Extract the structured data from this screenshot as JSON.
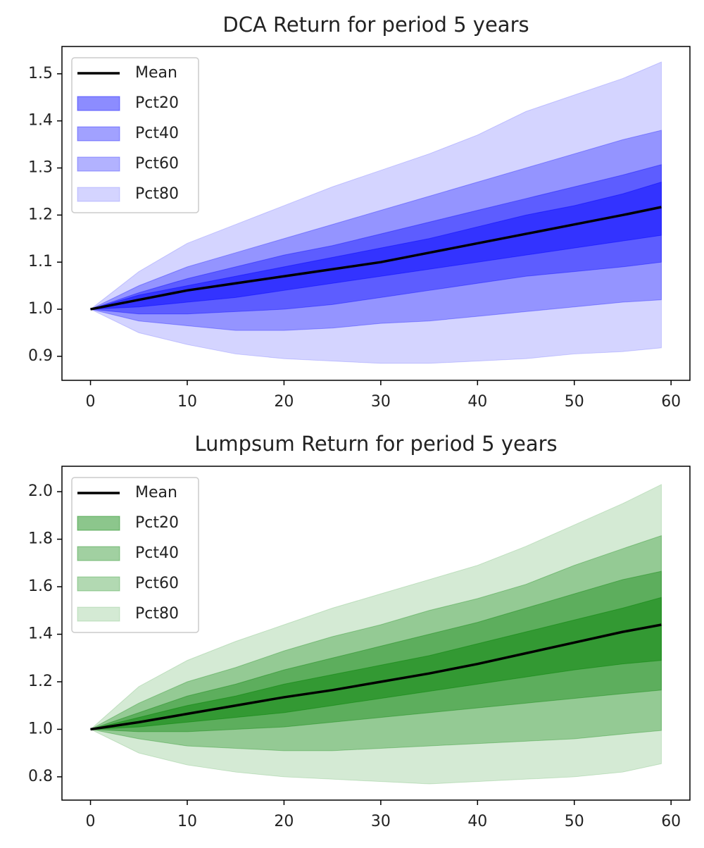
{
  "chart_data": [
    {
      "type": "fan",
      "title": "DCA Return for period 5 years",
      "x": [
        0,
        5,
        10,
        15,
        20,
        25,
        30,
        35,
        40,
        45,
        50,
        55,
        59
      ],
      "xlim": [
        -2.95,
        61.95
      ],
      "xticks": [
        0,
        10,
        20,
        30,
        40,
        50,
        60
      ],
      "ylim": [
        0.849,
        1.558
      ],
      "yticks": [
        0.9,
        {
          "value": 1,
          "label": "1.0"
        },
        1.1,
        1.2,
        1.3,
        1.4,
        1.5
      ],
      "legend": "upper left",
      "series": [
        {
          "name": "Mean",
          "color": "#000000",
          "values": [
            1.0,
            1.02,
            1.04,
            1.055,
            1.07,
            1.085,
            1.1,
            1.12,
            1.14,
            1.16,
            1.18,
            1.2,
            1.217
          ]
        },
        {
          "name": "Pct20",
          "color": "#0000ff",
          "alpha": 0.45,
          "upper": [
            1.0,
            1.03,
            1.05,
            1.07,
            1.09,
            1.11,
            1.13,
            1.15,
            1.175,
            1.2,
            1.22,
            1.245,
            1.27
          ],
          "lower": [
            1.0,
            1.005,
            1.015,
            1.025,
            1.04,
            1.055,
            1.07,
            1.085,
            1.1,
            1.115,
            1.13,
            1.145,
            1.157
          ]
        },
        {
          "name": "Pct40",
          "color": "#0000ff",
          "alpha": 0.37,
          "upper": [
            1.0,
            1.035,
            1.065,
            1.09,
            1.115,
            1.135,
            1.16,
            1.185,
            1.21,
            1.235,
            1.26,
            1.285,
            1.307
          ],
          "lower": [
            1.0,
            0.99,
            0.99,
            0.995,
            1.0,
            1.01,
            1.025,
            1.04,
            1.055,
            1.07,
            1.08,
            1.09,
            1.1
          ]
        },
        {
          "name": "Pct60",
          "color": "#0000ff",
          "alpha": 0.3,
          "upper": [
            1.0,
            1.05,
            1.09,
            1.12,
            1.15,
            1.18,
            1.21,
            1.24,
            1.27,
            1.3,
            1.33,
            1.36,
            1.38
          ],
          "lower": [
            1.0,
            0.975,
            0.965,
            0.955,
            0.955,
            0.96,
            0.97,
            0.975,
            0.985,
            0.995,
            1.005,
            1.015,
            1.02
          ]
        },
        {
          "name": "Pct80",
          "color": "#0000ff",
          "alpha": 0.17,
          "upper": [
            1.0,
            1.08,
            1.14,
            1.18,
            1.22,
            1.26,
            1.295,
            1.33,
            1.37,
            1.42,
            1.455,
            1.49,
            1.525
          ],
          "lower": [
            1.0,
            0.95,
            0.925,
            0.905,
            0.895,
            0.89,
            0.885,
            0.885,
            0.89,
            0.895,
            0.905,
            0.91,
            0.918
          ]
        }
      ]
    },
    {
      "type": "fan",
      "title": "Lumpsum Return for period 5 years",
      "x": [
        0,
        5,
        10,
        15,
        20,
        25,
        30,
        35,
        40,
        45,
        50,
        55,
        59
      ],
      "xlim": [
        -2.95,
        61.95
      ],
      "xticks": [
        0,
        10,
        20,
        30,
        40,
        50,
        60
      ],
      "ylim": [
        0.702,
        2.107
      ],
      "yticks": [
        0.8,
        {
          "value": 1,
          "label": "1.0"
        },
        1.2,
        1.4,
        1.6,
        1.8,
        {
          "value": 2,
          "label": "2.0"
        }
      ],
      "legend": "upper left",
      "series": [
        {
          "name": "Mean",
          "color": "#000000",
          "values": [
            1.0,
            1.03,
            1.065,
            1.1,
            1.135,
            1.165,
            1.2,
            1.235,
            1.275,
            1.32,
            1.365,
            1.41,
            1.44
          ]
        },
        {
          "name": "Pct20",
          "color": "#008000",
          "alpha": 0.45,
          "upper": [
            1.0,
            1.05,
            1.1,
            1.14,
            1.19,
            1.23,
            1.27,
            1.31,
            1.36,
            1.41,
            1.46,
            1.51,
            1.555
          ],
          "lower": [
            1.0,
            1.01,
            1.03,
            1.05,
            1.07,
            1.1,
            1.13,
            1.16,
            1.19,
            1.22,
            1.25,
            1.275,
            1.29
          ]
        },
        {
          "name": "Pct40",
          "color": "#008000",
          "alpha": 0.37,
          "upper": [
            1.0,
            1.07,
            1.14,
            1.19,
            1.25,
            1.3,
            1.35,
            1.4,
            1.45,
            1.51,
            1.57,
            1.63,
            1.665
          ],
          "lower": [
            1.0,
            0.99,
            0.99,
            1.0,
            1.01,
            1.03,
            1.05,
            1.07,
            1.09,
            1.11,
            1.13,
            1.15,
            1.165
          ]
        },
        {
          "name": "Pct60",
          "color": "#008000",
          "alpha": 0.3,
          "upper": [
            1.0,
            1.11,
            1.2,
            1.26,
            1.33,
            1.39,
            1.44,
            1.5,
            1.55,
            1.61,
            1.69,
            1.76,
            1.815
          ],
          "lower": [
            1.0,
            0.96,
            0.93,
            0.92,
            0.91,
            0.91,
            0.92,
            0.93,
            0.94,
            0.95,
            0.96,
            0.98,
            0.995
          ]
        },
        {
          "name": "Pct80",
          "color": "#008000",
          "alpha": 0.17,
          "upper": [
            1.0,
            1.18,
            1.29,
            1.37,
            1.44,
            1.51,
            1.57,
            1.63,
            1.69,
            1.77,
            1.86,
            1.95,
            2.03
          ],
          "lower": [
            1.0,
            0.9,
            0.85,
            0.82,
            0.8,
            0.79,
            0.78,
            0.77,
            0.78,
            0.79,
            0.8,
            0.82,
            0.855
          ]
        }
      ]
    }
  ]
}
